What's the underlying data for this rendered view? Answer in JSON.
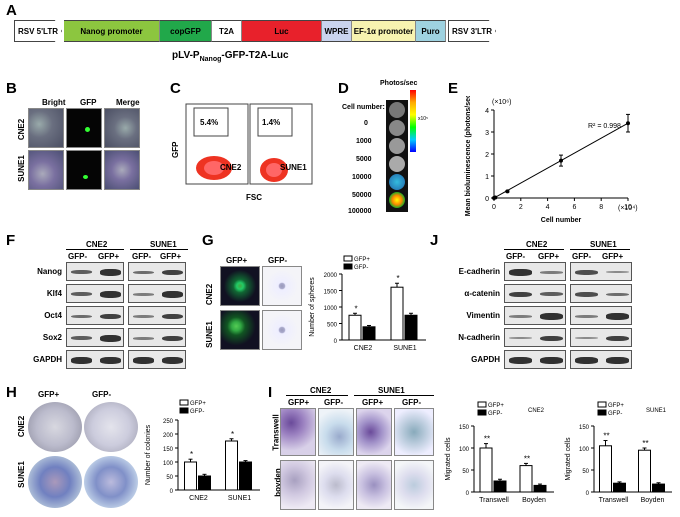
{
  "panels": {
    "A": "A",
    "B": "B",
    "C": "C",
    "D": "D",
    "E": "E",
    "F": "F",
    "G": "G",
    "J": "J",
    "H": "H",
    "I": "I"
  },
  "construct": {
    "segments": [
      "RSV 5'LTR",
      "Nanog promoter",
      "copGFP",
      "T2A",
      "Luc",
      "WPRE",
      "EF-1α promoter",
      "Puro",
      "RSV 3'LTR"
    ],
    "colors": [
      "#ffffff",
      "#8cc63f",
      "#21a84a",
      "#ffffff",
      "#e8212b",
      "#c9d4ee",
      "#f7f3b0",
      "#9ed2e0",
      "#ffffff"
    ],
    "title_main": "pLV-P",
    "title_sub": "Nanog",
    "title_rest": "-GFP-T2A-Luc"
  },
  "panel_b": {
    "columns": [
      "Bright",
      "GFP",
      "Merge"
    ],
    "rows": [
      "CNE2",
      "SUNE1"
    ]
  },
  "panel_c": {
    "ylabel": "GFP",
    "xlabel": "FSC",
    "plots": [
      {
        "name": "CNE2",
        "percent": "5.4%"
      },
      {
        "name": "SUNE1",
        "percent": "1.4%"
      }
    ]
  },
  "panel_d": {
    "header": "Cell number:",
    "unit": "Photos/sec",
    "scale_note": "x10⁵",
    "counts": [
      "0",
      "1000",
      "5000",
      "10000",
      "50000",
      "100000"
    ]
  },
  "panel_e": {
    "chart_data": {
      "type": "scatter",
      "x": [
        0,
        0.1,
        1,
        5,
        10
      ],
      "y": [
        0,
        0.02,
        0.3,
        1.7,
        3.4
      ],
      "err": [
        0,
        0,
        0.03,
        0.25,
        0.4
      ],
      "xlabel": "Cell number",
      "ylabel": "Mean bioluminescence (photons/sec)",
      "xlim": [
        0,
        10
      ],
      "ylim": [
        0,
        4
      ],
      "xticks": [
        "0",
        "2",
        "4",
        "6",
        "8",
        "10"
      ],
      "yticks": [
        "0",
        "1",
        "2",
        "3",
        "4"
      ],
      "x_multiplier": "(×10⁴)",
      "y_multiplier": "(×10⁶)",
      "r2": "R² = 0.998"
    }
  },
  "panel_f": {
    "groups": [
      "CNE2",
      "SUNE1"
    ],
    "lanes": [
      "GFP-",
      "GFP+",
      "GFP-",
      "GFP+"
    ],
    "proteins": [
      "Nanog",
      "Klf4",
      "Oct4",
      "Sox2",
      "GAPDH"
    ]
  },
  "panel_g": {
    "columns": [
      "GFP+",
      "GFP-"
    ],
    "rows": [
      "CNE2",
      "SUNE1"
    ],
    "chart_data": {
      "type": "bar",
      "categories": [
        "CNE2",
        "SUNE1"
      ],
      "series": [
        {
          "name": "GFP+",
          "values": [
            750,
            1600
          ],
          "err": [
            60,
            120
          ]
        },
        {
          "name": "GFP-",
          "values": [
            400,
            750
          ],
          "err": [
            40,
            60
          ]
        }
      ],
      "ylabel": "Number of spheres",
      "ylim": [
        0,
        2000
      ],
      "yticks": [
        "0",
        "500",
        "1000",
        "1500",
        "2000"
      ],
      "sig": [
        "*",
        "*"
      ]
    }
  },
  "panel_j": {
    "groups": [
      "CNE2",
      "SUNE1"
    ],
    "lanes": [
      "GFP-",
      "GFP+",
      "GFP-",
      "GFP+"
    ],
    "proteins": [
      "E-cadherin",
      "α-catenin",
      "Vimentin",
      "N-cadherin",
      "GAPDH"
    ]
  },
  "panel_h": {
    "columns": [
      "GFP+",
      "GFP-"
    ],
    "rows": [
      "CNE2",
      "SUNE1"
    ],
    "chart_data": {
      "type": "bar",
      "categories": [
        "CNE2",
        "SUNE1"
      ],
      "series": [
        {
          "name": "GFP+",
          "values": [
            100,
            175
          ],
          "err": [
            10,
            8
          ]
        },
        {
          "name": "GFP-",
          "values": [
            50,
            100
          ],
          "err": [
            6,
            5
          ]
        }
      ],
      "ylabel": "Number of colonies",
      "ylim": [
        0,
        250
      ],
      "yticks": [
        "0",
        "50",
        "100",
        "150",
        "200",
        "250"
      ],
      "sig": [
        "*",
        "*"
      ]
    }
  },
  "panel_i": {
    "groups": [
      "CNE2",
      "SUNE1"
    ],
    "columns": [
      "GFP+",
      "GFP-",
      "GFP+",
      "GFP-"
    ],
    "rows": [
      "Transwell",
      "boyden"
    ],
    "chart_data": [
      {
        "type": "bar",
        "title": "CNE2",
        "categories": [
          "Transwell",
          "Boyden"
        ],
        "series": [
          {
            "name": "GFP+",
            "values": [
              100,
              60
            ],
            "err": [
              10,
              5
            ]
          },
          {
            "name": "GFP-",
            "values": [
              25,
              15
            ],
            "err": [
              4,
              3
            ]
          }
        ],
        "ylabel": "Migrated cells",
        "ylim": [
          0,
          150
        ],
        "yticks": [
          "0",
          "50",
          "100",
          "150"
        ],
        "sig": [
          "**",
          "**"
        ]
      },
      {
        "type": "bar",
        "title": "SUNE1",
        "categories": [
          "Transwell",
          "Boyden"
        ],
        "series": [
          {
            "name": "GFP+",
            "values": [
              105,
              95
            ],
            "err": [
              12,
              5
            ]
          },
          {
            "name": "GFP-",
            "values": [
              20,
              18
            ],
            "err": [
              3,
              3
            ]
          }
        ],
        "ylabel": "Migrated cells",
        "ylim": [
          0,
          150
        ],
        "yticks": [
          "0",
          "50",
          "100",
          "150"
        ],
        "sig": [
          "**",
          "**"
        ]
      }
    ]
  }
}
